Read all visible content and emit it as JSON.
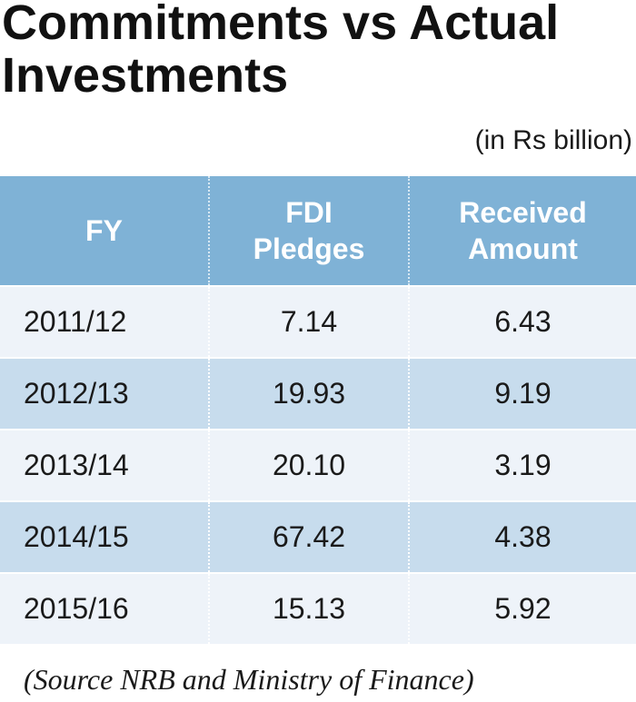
{
  "title_line1": "Commitments vs Actual",
  "title_line2": "Investments",
  "unit": "(in Rs billion)",
  "columns": {
    "fy": "FY",
    "pledges_line1": "FDI",
    "pledges_line2": "Pledges",
    "received_line1": "Received",
    "received_line2": "Amount"
  },
  "rows": [
    {
      "fy": "2011/12",
      "pledges": "7.14",
      "received": "6.43"
    },
    {
      "fy": "2012/13",
      "pledges": "19.93",
      "received": "9.19"
    },
    {
      "fy": "2013/14",
      "pledges": "20.10",
      "received": "3.19"
    },
    {
      "fy": "2014/15",
      "pledges": "67.42",
      "received": "4.38"
    },
    {
      "fy": "2015/16",
      "pledges": "15.13",
      "received": "5.92"
    }
  ],
  "source": "(Source NRB and Ministry of Finance)",
  "colors": {
    "header": "#7fb2d6",
    "row_light": "#eef3f9",
    "row_dark": "#c7dced"
  },
  "chart_data": {
    "type": "table",
    "title": "Commitments vs Actual Investments",
    "unit": "(in Rs billion)",
    "columns": [
      "FY",
      "FDI Pledges",
      "Received Amount"
    ],
    "rows": [
      [
        "2011/12",
        7.14,
        6.43
      ],
      [
        "2012/13",
        19.93,
        9.19
      ],
      [
        "2013/14",
        20.1,
        3.19
      ],
      [
        "2014/15",
        67.42,
        4.38
      ],
      [
        "2015/16",
        15.13,
        5.92
      ]
    ]
  }
}
